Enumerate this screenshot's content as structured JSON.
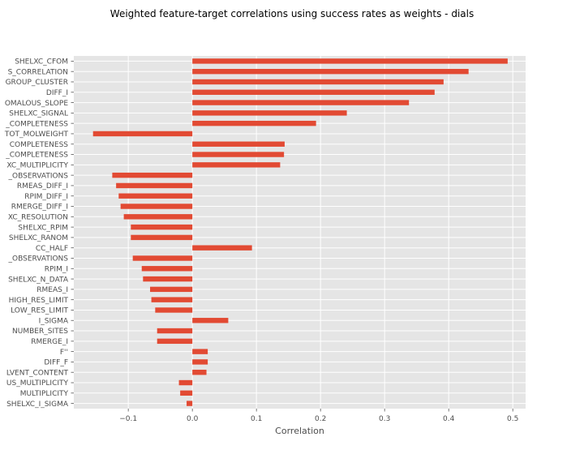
{
  "chart_data": {
    "type": "bar",
    "orientation": "horizontal",
    "title": "Weighted feature-target correlations using success rates as weights - dials",
    "xlabel": "Correlation",
    "ylabel": "",
    "xlim": [
      -0.185,
      0.52
    ],
    "xticks": [
      -0.1,
      0.0,
      0.1,
      0.2,
      0.3,
      0.4,
      0.5
    ],
    "xtick_labels": [
      "−0.1",
      "0.0",
      "0.1",
      "0.2",
      "0.3",
      "0.4",
      "0.5"
    ],
    "grid": true,
    "bar_color": "#e24a33",
    "background_color": "#e5e5e5",
    "categories": [
      "SHELXC_CFOM",
      "S_CORRELATION",
      "GROUP_CLUSTER",
      "DIFF_I",
      "OMALOUS_SLOPE",
      "SHELXC_SIGNAL",
      "_COMPLETENESS",
      "TOT_MOLWEIGHT",
      "COMPLETENESS",
      "_COMPLETENESS",
      "XC_MULTIPLICITY",
      "_OBSERVATIONS",
      "RMEAS_DIFF_I",
      "RPIM_DIFF_I",
      "RMERGE_DIFF_I",
      "XC_RESOLUTION",
      "SHELXC_RPIM",
      "SHELXC_RANOM",
      "CC_HALF",
      "_OBSERVATIONS",
      "RPIM_I",
      "SHELXC_N_DATA",
      "RMEAS_I",
      "HIGH_RES_LIMIT",
      "LOW_RES_LIMIT",
      "I_SIGMA",
      "NUMBER_SITES",
      "RMERGE_I",
      "F''",
      "DIFF_F",
      "LVENT_CONTENT",
      "US_MULTIPLICITY",
      "MULTIPLICITY",
      "SHELXC_I_SIGMA"
    ],
    "values": [
      0.492,
      0.431,
      0.392,
      0.378,
      0.338,
      0.241,
      0.193,
      -0.155,
      0.144,
      0.143,
      0.137,
      -0.125,
      -0.119,
      -0.115,
      -0.112,
      -0.107,
      -0.096,
      -0.096,
      0.093,
      -0.093,
      -0.079,
      -0.077,
      -0.066,
      -0.064,
      -0.058,
      0.056,
      -0.055,
      -0.055,
      0.024,
      0.024,
      0.022,
      -0.021,
      -0.019,
      -0.009
    ]
  }
}
